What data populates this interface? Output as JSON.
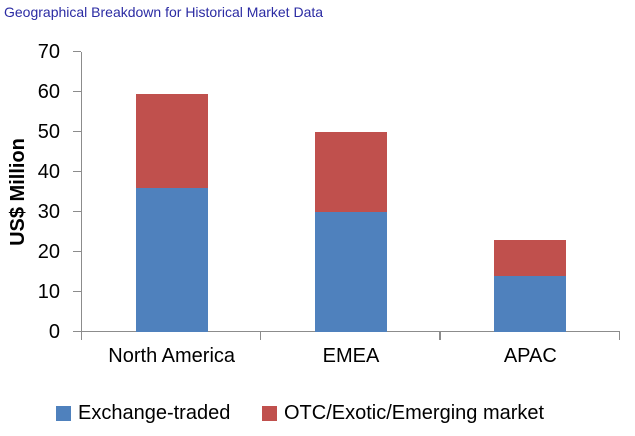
{
  "chart_data": {
    "type": "bar",
    "stacked": true,
    "title": "Geographical Breakdown for Historical Market Data",
    "ylabel": "US$ Million",
    "xlabel": "",
    "categories": [
      "North America",
      "EMEA",
      "APAC"
    ],
    "series": [
      {
        "name": "Exchange-traded",
        "color": "#4F81BD",
        "values": [
          36,
          30,
          14
        ]
      },
      {
        "name": "OTC/Exotic/Emerging market",
        "color": "#C0504D",
        "values": [
          23.5,
          20,
          9
        ]
      }
    ],
    "totals": [
      59.5,
      50,
      23
    ],
    "ylim": [
      0,
      70
    ],
    "ytick_step": 10,
    "ytick_labels": [
      "0",
      "10",
      "20",
      "30",
      "40",
      "50",
      "60",
      "70"
    ],
    "grid": false,
    "legend_position": "bottom"
  },
  "colors": {
    "title": "#2B2BA3",
    "axis": "#8C8C8C",
    "text": "#000000",
    "background": "#FFFFFF"
  }
}
